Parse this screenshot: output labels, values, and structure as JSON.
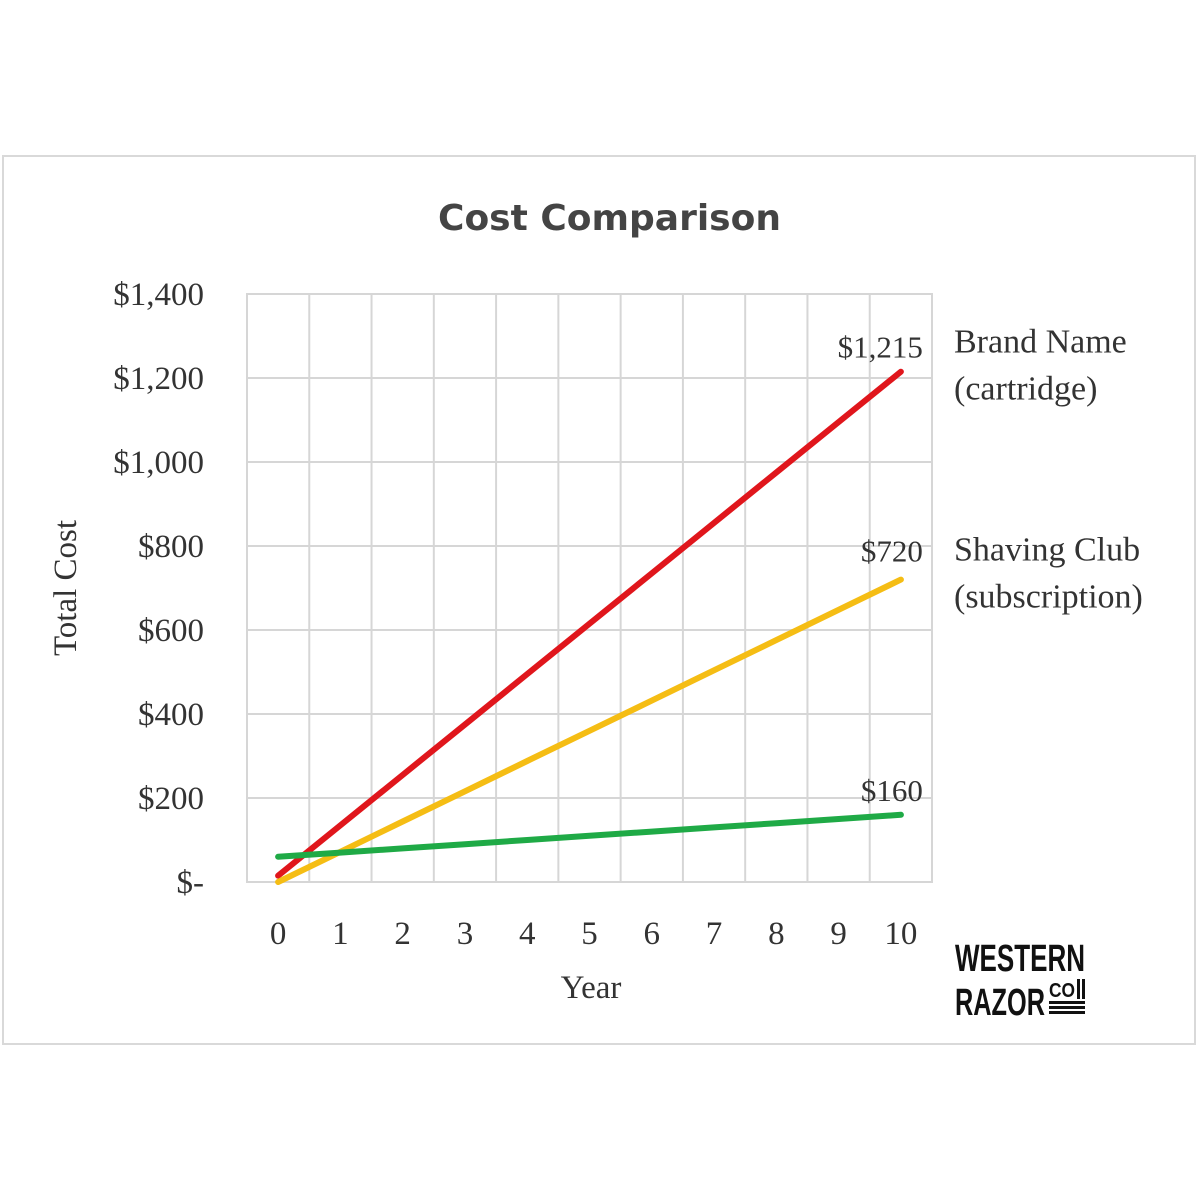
{
  "chart_data": {
    "type": "line",
    "title": "Cost Comparison",
    "xlabel": "Year",
    "ylabel": "Total Cost",
    "x": [
      0,
      1,
      2,
      3,
      4,
      5,
      6,
      7,
      8,
      9,
      10
    ],
    "xlim": [
      -0.5,
      10.5
    ],
    "ylim": [
      0,
      1400
    ],
    "yticks": [
      0,
      200,
      400,
      600,
      800,
      1000,
      1200,
      1400
    ],
    "ytick_labels": [
      "$-",
      "$200",
      "$400",
      "$600",
      "$800",
      "$1,000",
      "$1,200",
      "$1,400"
    ],
    "grid": true,
    "series": [
      {
        "name": "Brand Name (cartridge)",
        "name_lines": [
          "Brand Name",
          "(cartridge)"
        ],
        "color": "#e0161c",
        "values": [
          15,
          135,
          255,
          375,
          495,
          615,
          735,
          855,
          975,
          1095,
          1215
        ],
        "end_label": "$1,215"
      },
      {
        "name": "Shaving Club (subscription)",
        "name_lines": [
          "Shaving Club",
          "(subscription)"
        ],
        "color": "#f5bd14",
        "values": [
          0,
          72,
          144,
          216,
          288,
          360,
          432,
          504,
          576,
          648,
          720
        ],
        "end_label": "$720"
      },
      {
        "name": "",
        "color": "#1faa46",
        "values": [
          60,
          70,
          80,
          90,
          100,
          110,
          120,
          130,
          140,
          150,
          160
        ],
        "end_label": "$160"
      }
    ]
  },
  "logo": {
    "line1": "WESTERN",
    "line2": "RAZOR",
    "co": "CO"
  }
}
